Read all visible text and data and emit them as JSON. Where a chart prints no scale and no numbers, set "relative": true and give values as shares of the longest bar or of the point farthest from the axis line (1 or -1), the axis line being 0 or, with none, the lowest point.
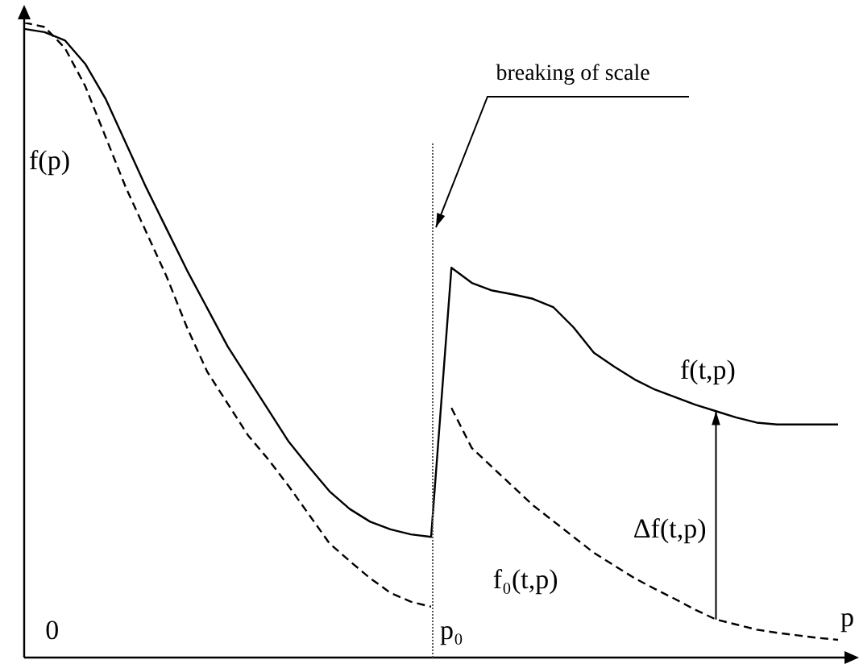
{
  "chart_data": {
    "type": "line",
    "relative": true,
    "xlabel": "p",
    "tick_labels": false,
    "legend": false,
    "marker": "none",
    "categories": [
      null,
      null,
      null,
      null,
      null,
      null,
      null,
      null,
      null,
      null,
      null,
      null,
      null,
      null,
      null,
      null,
      null,
      null,
      null,
      null,
      null,
      null,
      null,
      null,
      null,
      null,
      null,
      null,
      null,
      null,
      null,
      null,
      null,
      null,
      null,
      null,
      null,
      null,
      null,
      null,
      null
    ],
    "series": [
      {
        "color": "#000000",
        "line_style": "solid",
        "values": [
          0.99,
          0.985,
          0.972,
          0.935,
          0.88,
          0.81,
          0.74,
          0.675,
          0.61,
          0.55,
          0.49,
          0.44,
          0.39,
          0.34,
          0.3,
          0.262,
          0.234,
          0.214,
          0.202,
          0.194,
          0.19,
          0.614,
          0.59,
          0.578,
          0.572,
          0.565,
          0.552,
          0.52,
          0.48,
          0.458,
          0.438,
          0.422,
          0.41,
          0.398,
          0.388,
          0.378,
          0.37,
          0.367,
          0.367,
          0.367,
          0.367
        ]
      },
      {
        "color": "#000000",
        "line_style": "dashed",
        "values": [
          1,
          0.993,
          0.96,
          0.9,
          0.82,
          0.74,
          0.67,
          0.6,
          0.52,
          0.45,
          0.4,
          0.35,
          0.312,
          0.27,
          0.225,
          0.18,
          0.152,
          0.125,
          0.102,
          0.088,
          0.08,
          null,
          null,
          null,
          null,
          null,
          null,
          null,
          null,
          null,
          null,
          null,
          null,
          null,
          null,
          null,
          null,
          null,
          null,
          null,
          null
        ]
      },
      {
        "color": "#000000",
        "line_style": "dashed",
        "values": [
          null,
          null,
          null,
          null,
          null,
          null,
          null,
          null,
          null,
          null,
          null,
          null,
          null,
          null,
          null,
          null,
          null,
          null,
          null,
          null,
          null,
          0.393,
          0.33,
          0.3,
          0.27,
          0.24,
          0.215,
          0.19,
          0.165,
          0.145,
          0.125,
          0.108,
          0.092,
          0.075,
          0.06,
          0.052,
          0.044,
          0.039,
          0.035,
          0.031,
          0.028
        ]
      }
    ],
    "annotations": [
      "f(p)",
      "0",
      "p₀",
      "breaking of scale",
      "f(t,p)",
      "Δf(t,p)",
      "f₀(t,p)"
    ]
  }
}
